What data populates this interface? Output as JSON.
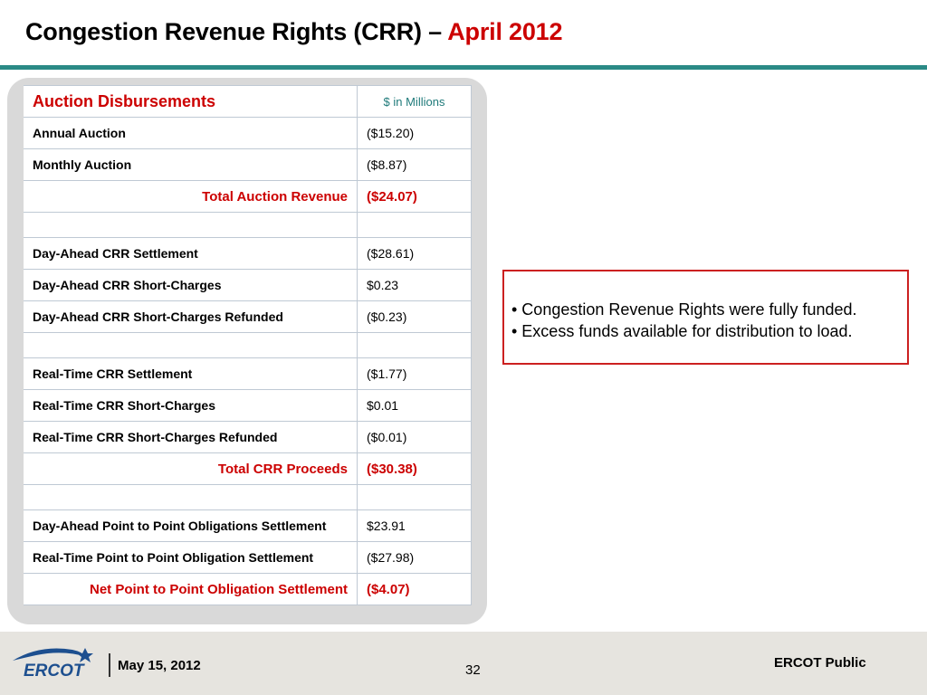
{
  "slide": {
    "title_main": "Congestion Revenue Rights (CRR) –",
    "title_accent": "April 2012"
  },
  "table": {
    "header_label": "Auction Disbursements",
    "header_unit": "$ in Millions",
    "rows": [
      {
        "label": "Annual Auction",
        "value": "($15.20)"
      },
      {
        "label": "Monthly Auction",
        "value": "($8.87)"
      },
      {
        "label": "Total Auction Revenue",
        "value": "($24.07)"
      },
      {
        "label": "",
        "value": ""
      },
      {
        "label": "Day-Ahead CRR Settlement",
        "value": "($28.61)"
      },
      {
        "label": "Day-Ahead CRR Short-Charges",
        "value": "$0.23"
      },
      {
        "label": "Day-Ahead CRR Short-Charges Refunded",
        "value": "($0.23)"
      },
      {
        "label": "",
        "value": ""
      },
      {
        "label": "Real-Time CRR Settlement",
        "value": "($1.77)"
      },
      {
        "label": "Real-Time CRR Short-Charges",
        "value": "$0.01"
      },
      {
        "label": "Real-Time CRR Short-Charges Refunded",
        "value": "($0.01)"
      },
      {
        "label": "Total CRR Proceeds",
        "value": "($30.38)"
      },
      {
        "label": "",
        "value": ""
      },
      {
        "label": "Day-Ahead Point to Point Obligations Settlement",
        "value": "$23.91"
      },
      {
        "label": "Real-Time Point to Point Obligation Settlement",
        "value": "($27.98)"
      },
      {
        "label": "Net Point to Point Obligation Settlement",
        "value": "($4.07)"
      }
    ]
  },
  "notes": [
    "• Congestion Revenue Rights were fully funded.",
    "• Excess funds available for distribution to load."
  ],
  "footer": {
    "logo_text": "ERCOT",
    "date": "May 15, 2012",
    "page_number": "32",
    "classification": "ERCOT Public"
  },
  "colors": {
    "accent_red": "#cc0000",
    "rule_teal": "#2a8a86",
    "logo_blue": "#1d4f8f"
  }
}
